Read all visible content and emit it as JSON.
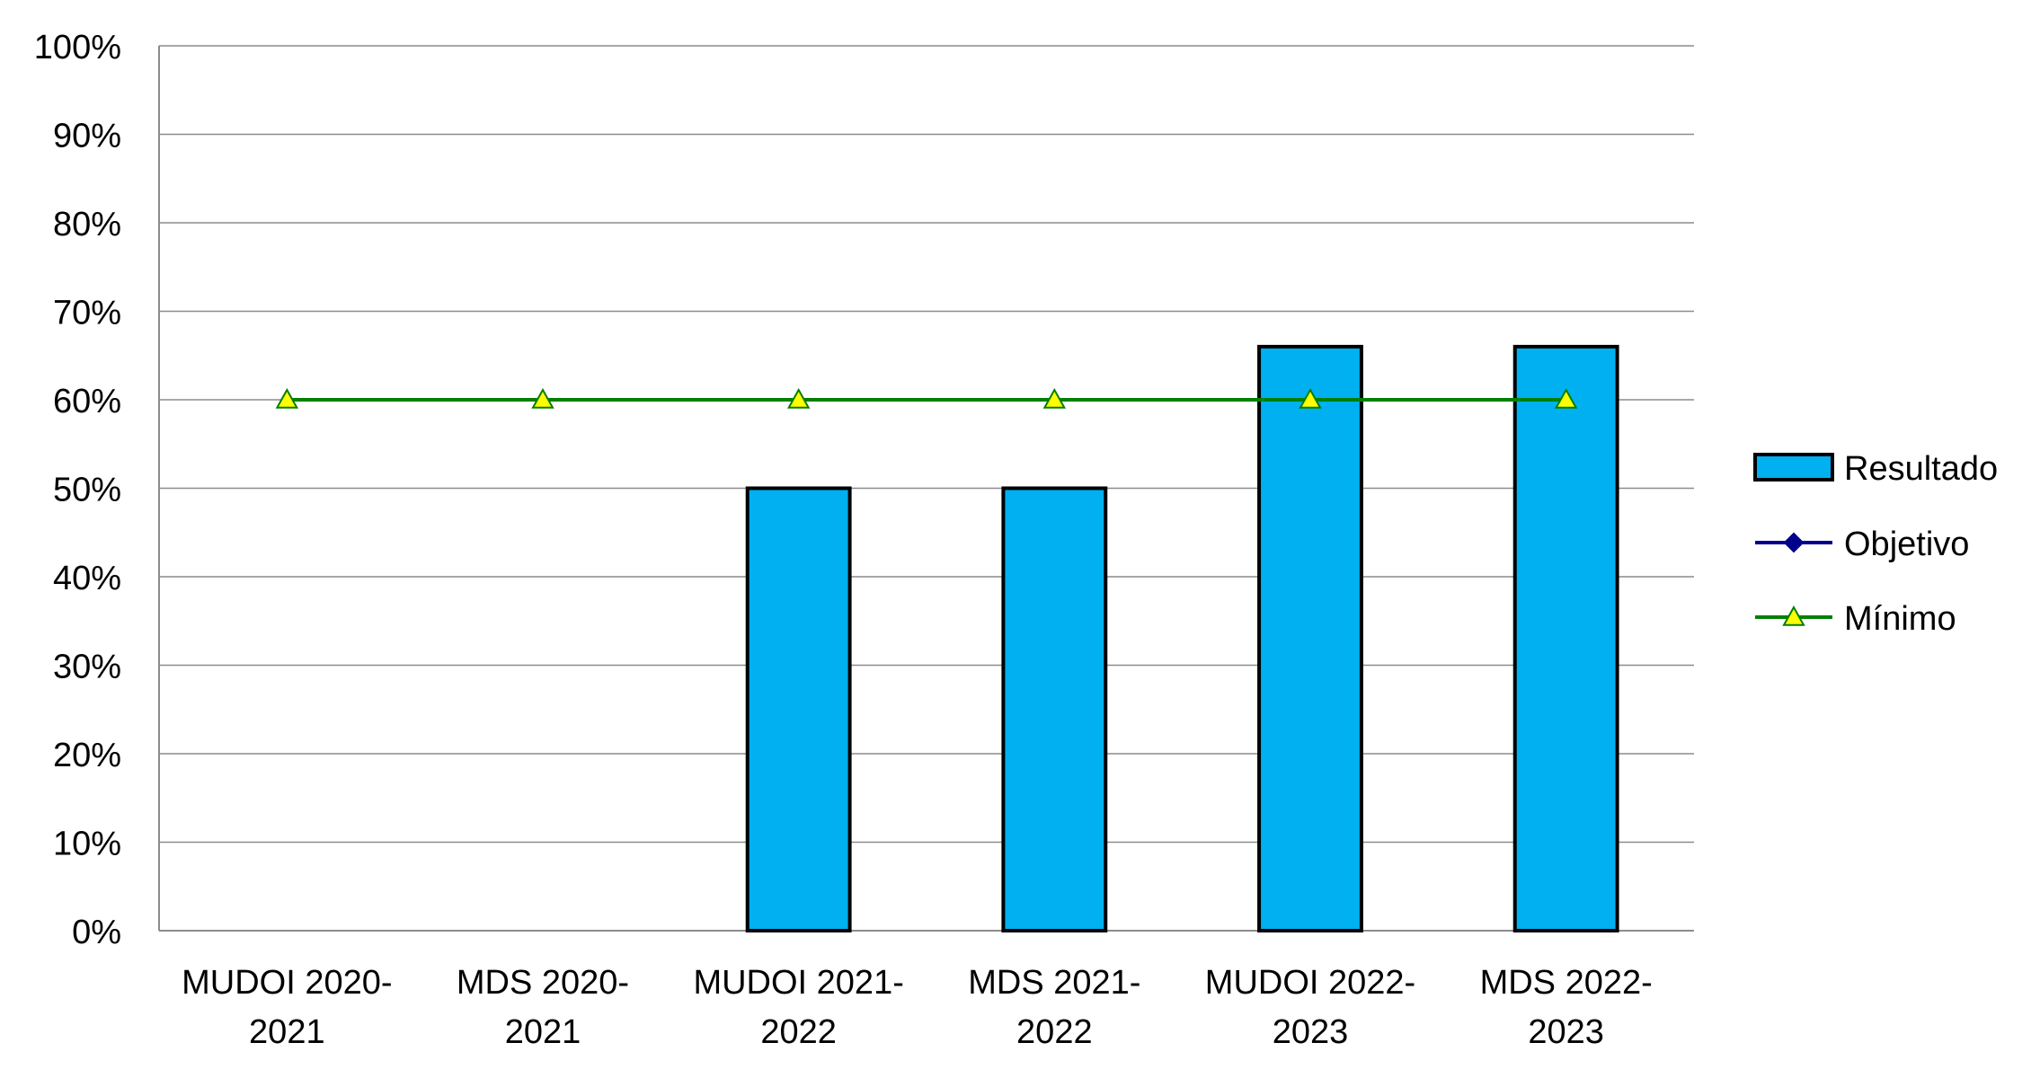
{
  "chart_data": {
    "type": "bar",
    "title": "",
    "xlabel": "",
    "ylabel": "",
    "ylim": [
      0,
      100
    ],
    "yticks": [
      0,
      10,
      20,
      30,
      40,
      50,
      60,
      70,
      80,
      90,
      100
    ],
    "ytick_suffix": "%",
    "grid": true,
    "legend_position": "right",
    "categories": [
      [
        "MUDOI 2020-",
        "2021"
      ],
      [
        "MDS 2020-",
        "2021"
      ],
      [
        "MUDOI 2021-",
        "2022"
      ],
      [
        "MDS 2021-",
        "2022"
      ],
      [
        "MUDOI 2022-",
        "2023"
      ],
      [
        "MDS 2022-",
        "2023"
      ]
    ],
    "series": [
      {
        "name": "Resultado",
        "kind": "bar",
        "color": "#00B0F0",
        "values": [
          null,
          null,
          50,
          50,
          66,
          66
        ]
      },
      {
        "name": "Objetivo",
        "kind": "line",
        "marker": "diamond",
        "color": "#00008B",
        "values": [
          null,
          null,
          null,
          null,
          null,
          null
        ]
      },
      {
        "name": "Mínimo",
        "kind": "line",
        "marker": "triangle",
        "color": "#008000",
        "marker_fill": "#FFFF00",
        "values": [
          60,
          60,
          60,
          60,
          60,
          60
        ]
      }
    ]
  }
}
